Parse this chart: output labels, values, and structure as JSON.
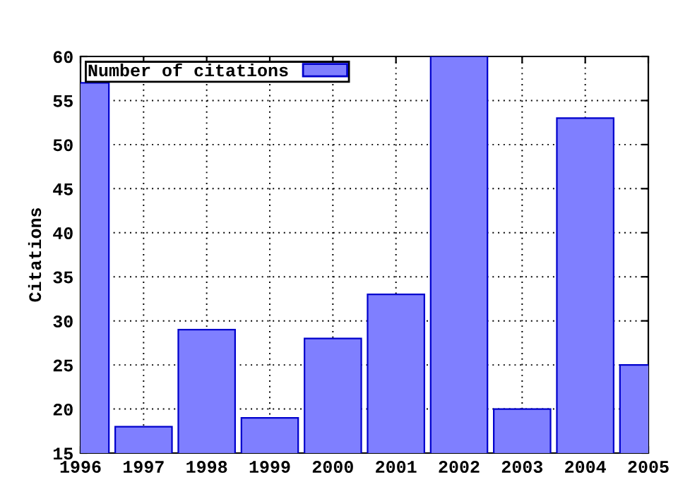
{
  "chart_data": {
    "type": "bar",
    "ylabel": "Citations",
    "x": [
      1996,
      1997,
      1998,
      1999,
      2000,
      2001,
      2002,
      2003,
      2004,
      2005
    ],
    "series": [
      {
        "name": "Number of citations",
        "color": "#7f7fff",
        "values": [
          57,
          18,
          29,
          19,
          28,
          33,
          60,
          20,
          53,
          25
        ]
      }
    ],
    "xlim": [
      1996,
      2005
    ],
    "xticks": [
      1996,
      1997,
      1998,
      1999,
      2000,
      2001,
      2002,
      2003,
      2004,
      2005
    ],
    "ylim": [
      15,
      60
    ],
    "yticks": [
      15,
      20,
      25,
      30,
      35,
      40,
      45,
      50,
      55,
      60
    ],
    "grid": true,
    "legend": "top left"
  }
}
